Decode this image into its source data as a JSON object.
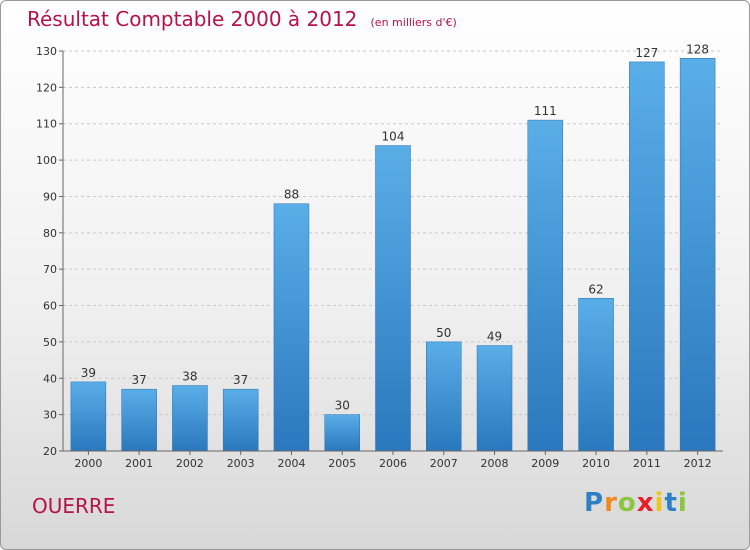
{
  "chart_data": {
    "type": "bar",
    "title": "Résultat Comptable 2000 à 2012",
    "subtitle": "(en milliers d'€)",
    "categories": [
      "2000",
      "2001",
      "2002",
      "2003",
      "2004",
      "2005",
      "2006",
      "2007",
      "2008",
      "2009",
      "2010",
      "2011",
      "2012"
    ],
    "values": [
      39,
      37,
      38,
      37,
      88,
      30,
      104,
      50,
      49,
      111,
      62,
      127,
      128
    ],
    "ylim": [
      20,
      130
    ],
    "yticks": [
      20,
      30,
      40,
      50,
      60,
      70,
      80,
      90,
      100,
      110,
      120,
      130
    ],
    "grid": true,
    "bar_color": "#3a8fd6",
    "xlabel": "",
    "ylabel": ""
  },
  "location_label": "OUERRE",
  "logo": {
    "letters": [
      "P",
      "r",
      "o",
      "x",
      "i",
      "t",
      "i"
    ],
    "colors": [
      "#2f7fc4",
      "#f08a1c",
      "#8cc63f",
      "#e8202a",
      "#f0c419",
      "#2f7fc4",
      "#8cc63f"
    ]
  }
}
